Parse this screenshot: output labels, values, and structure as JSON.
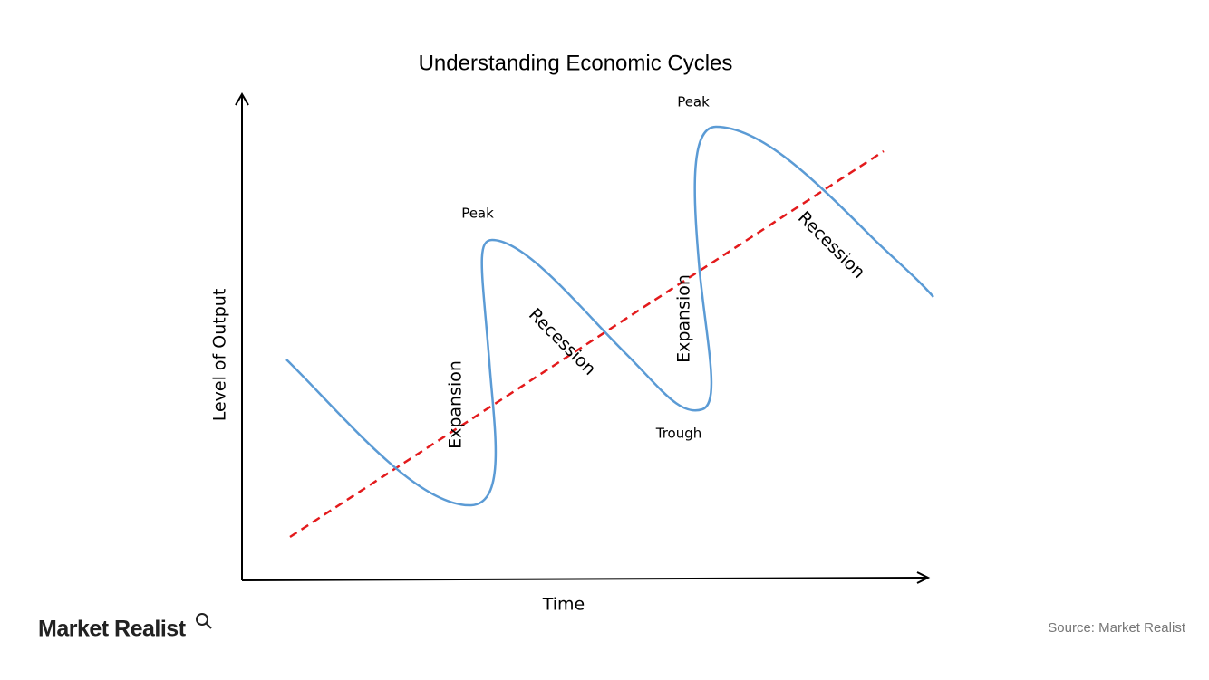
{
  "title": "Understanding Economic Cycles",
  "axes": {
    "y_label": "Level of Output",
    "x_label": "Time"
  },
  "labels": {
    "peak_1": "Peak",
    "peak_2": "Peak",
    "trough": "Trough",
    "expansion_1": "Expansion",
    "expansion_2": "Expansion",
    "recession_1": "Recession",
    "recession_2": "Recession"
  },
  "footer": {
    "logo": "Market Realist",
    "source": "Source: Market Realist"
  }
}
